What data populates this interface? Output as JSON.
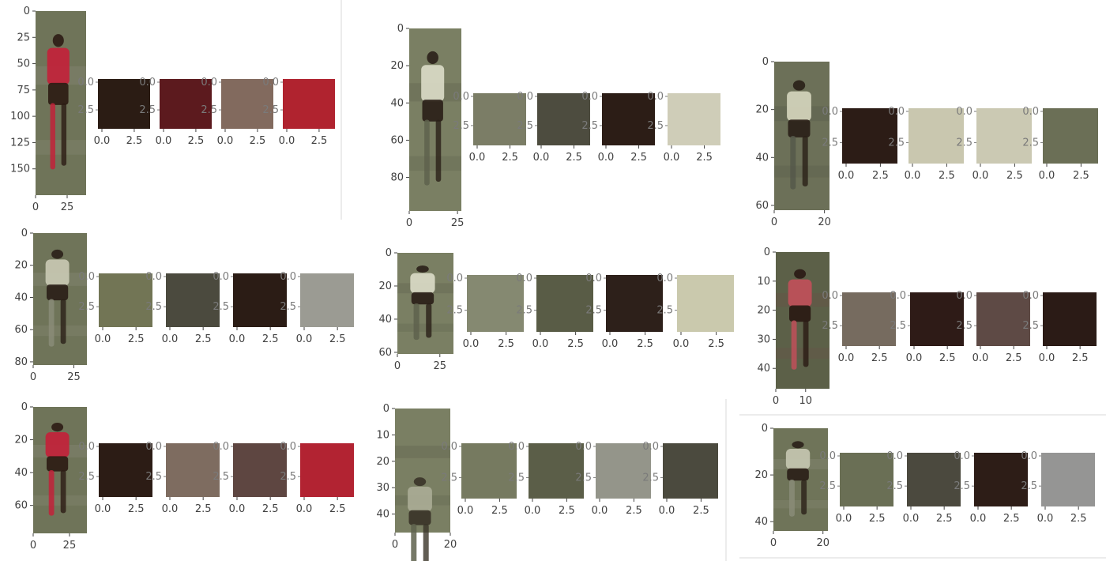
{
  "chart_data": [
    {
      "type": "image_with_swatches",
      "image": {
        "xlim": [
          0,
          40
        ],
        "ylim": [
          0,
          175
        ],
        "xticks": [
          "0",
          "25"
        ],
        "yticks": [
          "0",
          "25",
          "50",
          "75",
          "100",
          "125",
          "150"
        ],
        "palette": [
          "#6f7459",
          "#c2223a",
          "#2c1c14",
          "#8a8a78"
        ],
        "figure": "red-player"
      },
      "swatches": [
        {
          "color": "#2b1c14",
          "xticks": [
            "0.0",
            "2.5"
          ],
          "yticks": [
            "0.0",
            "2.5"
          ]
        },
        {
          "color": "#5c1a1e",
          "xticks": [
            "0.0",
            "2.5"
          ],
          "yticks": [
            "0.0",
            "2.5"
          ]
        },
        {
          "color": "#826a5e",
          "xticks": [
            "0.0",
            "2.5"
          ],
          "yticks": [
            "0.0",
            "2.5"
          ]
        },
        {
          "color": "#b0232f",
          "xticks": [
            "0.0",
            "2.5"
          ],
          "yticks": [
            "0.0",
            "2.5"
          ]
        }
      ]
    },
    {
      "type": "image_with_swatches",
      "image": {
        "xlim": [
          0,
          27
        ],
        "ylim": [
          0,
          98
        ],
        "xticks": [
          "0",
          "25"
        ],
        "yticks": [
          "0",
          "20",
          "40",
          "60",
          "80"
        ],
        "palette": [
          "#7a7f63",
          "#d9dac6",
          "#2a2018",
          "#5e624c"
        ],
        "figure": "white-player"
      },
      "swatches": [
        {
          "color": "#7b7d66",
          "xticks": [
            "0.0",
            "2.5"
          ],
          "yticks": [
            "0.0",
            "2.5"
          ]
        },
        {
          "color": "#4d4c3f",
          "xticks": [
            "0.0",
            "2.5"
          ],
          "yticks": [
            "0.0",
            "2.5"
          ]
        },
        {
          "color": "#2c1d16",
          "xticks": [
            "0.0",
            "2.5"
          ],
          "yticks": [
            "0.0",
            "2.5"
          ]
        },
        {
          "color": "#cfcdb8",
          "xticks": [
            "0.0",
            "2.5"
          ],
          "yticks": [
            "0.0",
            "2.5"
          ]
        }
      ]
    },
    {
      "type": "image_with_swatches",
      "image": {
        "xlim": [
          0,
          22
        ],
        "ylim": [
          0,
          62
        ],
        "xticks": [
          "0",
          "20"
        ],
        "yticks": [
          "0",
          "20",
          "40",
          "60"
        ],
        "palette": [
          "#6c7058",
          "#d4d4bc",
          "#2a2018",
          "#55584a"
        ],
        "figure": "white-player"
      },
      "swatches": [
        {
          "color": "#2c1c16",
          "xticks": [
            "0.0",
            "2.5"
          ],
          "yticks": [
            "0.0",
            "2.5"
          ]
        },
        {
          "color": "#c9c7af",
          "xticks": [
            "0.0",
            "2.5"
          ],
          "yticks": [
            "0.0",
            "2.5"
          ]
        },
        {
          "color": "#cbc9b3",
          "xticks": [
            "0.0",
            "2.5"
          ],
          "yticks": [
            "0.0",
            "2.5"
          ]
        },
        {
          "color": "#6b6f56",
          "xticks": [
            "0.0",
            "2.5"
          ],
          "yticks": [
            "0.0",
            "2.5"
          ]
        }
      ]
    },
    {
      "type": "image_with_swatches",
      "image": {
        "xlim": [
          0,
          33
        ],
        "ylim": [
          0,
          82
        ],
        "xticks": [
          "0",
          "25"
        ],
        "yticks": [
          "0",
          "20",
          "40",
          "60",
          "80"
        ],
        "palette": [
          "#6f7459",
          "#c8c8b2",
          "#2a2018",
          "#8a8c78"
        ],
        "figure": "white-player"
      },
      "swatches": [
        {
          "color": "#727555",
          "xticks": [
            "0.0",
            "2.5"
          ],
          "yticks": [
            "0.0",
            "2.5"
          ]
        },
        {
          "color": "#4b4a3e",
          "xticks": [
            "0.0",
            "2.5"
          ],
          "yticks": [
            "0.0",
            "2.5"
          ]
        },
        {
          "color": "#2b1c15",
          "xticks": [
            "0.0",
            "2.5"
          ],
          "yticks": [
            "0.0",
            "2.5"
          ]
        },
        {
          "color": "#9b9b93",
          "xticks": [
            "0.0",
            "2.5"
          ],
          "yticks": [
            "0.0",
            "2.5"
          ]
        }
      ]
    },
    {
      "type": "image_with_swatches",
      "image": {
        "xlim": [
          0,
          33
        ],
        "ylim": [
          0,
          61
        ],
        "xticks": [
          "0",
          "25"
        ],
        "yticks": [
          "0",
          "20",
          "40",
          "60"
        ],
        "palette": [
          "#7a7f63",
          "#d9dac6",
          "#2a2018",
          "#5e624c"
        ],
        "figure": "white-player"
      },
      "swatches": [
        {
          "color": "#858971",
          "xticks": [
            "0.0",
            "2.5"
          ],
          "yticks": [
            "0.0",
            "2.5"
          ]
        },
        {
          "color": "#595c46",
          "xticks": [
            "0.0",
            "2.5"
          ],
          "yticks": [
            "0.0",
            "2.5"
          ]
        },
        {
          "color": "#2d201a",
          "xticks": [
            "0.0",
            "2.5"
          ],
          "yticks": [
            "0.0",
            "2.5"
          ]
        },
        {
          "color": "#cac9ad",
          "xticks": [
            "0.0",
            "2.5"
          ],
          "yticks": [
            "0.0",
            "2.5"
          ]
        }
      ]
    },
    {
      "type": "image_with_swatches",
      "image": {
        "xlim": [
          0,
          18
        ],
        "ylim": [
          0,
          47
        ],
        "xticks": [
          "0",
          "10"
        ],
        "yticks": [
          "0",
          "10",
          "20",
          "30",
          "40"
        ],
        "palette": [
          "#5c6048",
          "#c0505a",
          "#2a1a14",
          "#6a5048"
        ],
        "figure": "red-player"
      },
      "swatches": [
        {
          "color": "#766b5f",
          "xticks": [
            "0.0",
            "2.5"
          ],
          "yticks": [
            "0.0",
            "2.5"
          ]
        },
        {
          "color": "#2e1b17",
          "xticks": [
            "0.0",
            "2.5"
          ],
          "yticks": [
            "0.0",
            "2.5"
          ]
        },
        {
          "color": "#5e4a45",
          "xticks": [
            "0.0",
            "2.5"
          ],
          "yticks": [
            "0.0",
            "2.5"
          ]
        },
        {
          "color": "#2b1b16",
          "xticks": [
            "0.0",
            "2.5"
          ],
          "yticks": [
            "0.0",
            "2.5"
          ]
        }
      ]
    },
    {
      "type": "image_with_swatches",
      "image": {
        "xlim": [
          0,
          37
        ],
        "ylim": [
          0,
          77
        ],
        "xticks": [
          "0",
          "25"
        ],
        "yticks": [
          "0",
          "20",
          "40",
          "60"
        ],
        "palette": [
          "#6f7459",
          "#c2223a",
          "#2c1c14",
          "#8a8a78"
        ],
        "figure": "red-player"
      },
      "swatches": [
        {
          "color": "#2c1c15",
          "xticks": [
            "0.0",
            "2.5"
          ],
          "yticks": [
            "0.0",
            "2.5"
          ]
        },
        {
          "color": "#7e6c60",
          "xticks": [
            "0.0",
            "2.5"
          ],
          "yticks": [
            "0.0",
            "2.5"
          ]
        },
        {
          "color": "#5e4641",
          "xticks": [
            "0.0",
            "2.5"
          ],
          "yticks": [
            "0.0",
            "2.5"
          ]
        },
        {
          "color": "#b22332",
          "xticks": [
            "0.0",
            "2.5"
          ],
          "yticks": [
            "0.0",
            "2.5"
          ]
        }
      ]
    },
    {
      "type": "image_with_swatches",
      "image": {
        "xlim": [
          0,
          20
        ],
        "ylim": [
          0,
          47
        ],
        "xticks": [
          "0",
          "20"
        ],
        "yticks": [
          "0",
          "10",
          "20",
          "30",
          "40"
        ],
        "palette": [
          "#7a7f63",
          "#a9ab95",
          "#3a3428",
          "#5e624c"
        ],
        "figure": "blur-player"
      },
      "swatches": [
        {
          "color": "#767a60",
          "xticks": [
            "0.0",
            "2.5"
          ],
          "yticks": [
            "0.0",
            "2.5"
          ]
        },
        {
          "color": "#5b5e48",
          "xticks": [
            "0.0",
            "2.5"
          ],
          "yticks": [
            "0.0",
            "2.5"
          ]
        },
        {
          "color": "#94958a",
          "xticks": [
            "0.0",
            "2.5"
          ],
          "yticks": [
            "0.0",
            "2.5"
          ]
        },
        {
          "color": "#4b4a3e",
          "xticks": [
            "0.0",
            "2.5"
          ],
          "yticks": [
            "0.0",
            "2.5"
          ]
        }
      ]
    },
    {
      "type": "image_with_swatches",
      "image": {
        "xlim": [
          0,
          22
        ],
        "ylim": [
          0,
          44
        ],
        "xticks": [
          "0",
          "20"
        ],
        "yticks": [
          "0",
          "20",
          "40"
        ],
        "palette": [
          "#6f7459",
          "#c4c6b0",
          "#2a2018",
          "#8a8c78"
        ],
        "figure": "white-player"
      },
      "swatches": [
        {
          "color": "#6a6f55",
          "xticks": [
            "0.0",
            "2.5"
          ],
          "yticks": [
            "0.0",
            "2.5"
          ]
        },
        {
          "color": "#4b493e",
          "xticks": [
            "0.0",
            "2.5"
          ],
          "yticks": [
            "0.0",
            "2.5"
          ]
        },
        {
          "color": "#2d1d17",
          "xticks": [
            "0.0",
            "2.5"
          ],
          "yticks": [
            "0.0",
            "2.5"
          ]
        },
        {
          "color": "#959594",
          "xticks": [
            "0.0",
            "2.5"
          ],
          "yticks": [
            "0.0",
            "2.5"
          ]
        }
      ]
    }
  ]
}
